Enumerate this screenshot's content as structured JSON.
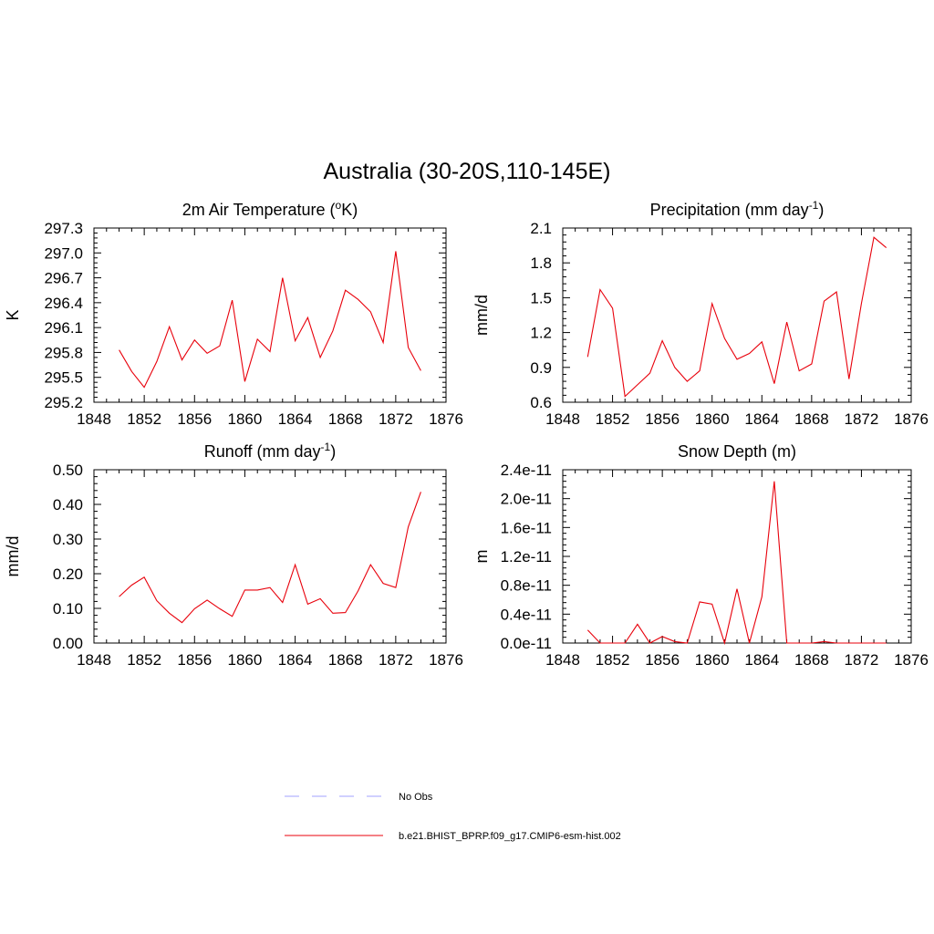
{
  "figure": {
    "title": "Australia (30-20S,110-145E)"
  },
  "chart_data": [
    {
      "type": "line",
      "title": "2m Air Temperature (",
      "title_sup": "o",
      "title_suffix": "K)",
      "xlabel": "",
      "ylabel": "K",
      "xlim": [
        1848,
        1876
      ],
      "ylim": [
        295.2,
        297.3
      ],
      "xticks": [
        1848,
        1852,
        1856,
        1860,
        1864,
        1868,
        1872,
        1876
      ],
      "yticks": [
        295.2,
        295.5,
        295.8,
        296.1,
        296.4,
        296.7,
        297.0,
        297.3
      ],
      "ytick_labels": [
        "295.2",
        "295.5",
        "295.8",
        "296.1",
        "296.4",
        "296.7",
        "297.0",
        "297.3"
      ],
      "x": [
        1850,
        1851,
        1852,
        1853,
        1854,
        1855,
        1856,
        1857,
        1858,
        1859,
        1860,
        1861,
        1862,
        1863,
        1864,
        1865,
        1866,
        1867,
        1868,
        1869,
        1870,
        1871,
        1872,
        1873,
        1874
      ],
      "series": [
        {
          "color": "#e8000b",
          "values": [
            295.83,
            295.57,
            295.38,
            295.69,
            296.11,
            295.71,
            295.95,
            295.79,
            295.88,
            296.43,
            295.45,
            295.96,
            295.81,
            296.7,
            295.94,
            296.22,
            295.74,
            296.06,
            296.55,
            296.44,
            296.29,
            295.92,
            297.02,
            295.86,
            295.58
          ]
        }
      ]
    },
    {
      "type": "line",
      "title": "Precipitation (mm day",
      "title_sup": "-1",
      "title_suffix": ")",
      "xlabel": "",
      "ylabel": "mm/d",
      "xlim": [
        1848,
        1876
      ],
      "ylim": [
        0.6,
        2.1
      ],
      "xticks": [
        1848,
        1852,
        1856,
        1860,
        1864,
        1868,
        1872,
        1876
      ],
      "yticks": [
        0.6,
        0.9,
        1.2,
        1.5,
        1.8,
        2.1
      ],
      "ytick_labels": [
        "0.6",
        "0.9",
        "1.2",
        "1.5",
        "1.8",
        "2.1"
      ],
      "x": [
        1850,
        1851,
        1852,
        1853,
        1854,
        1855,
        1856,
        1857,
        1858,
        1859,
        1860,
        1861,
        1862,
        1863,
        1864,
        1865,
        1866,
        1867,
        1868,
        1869,
        1870,
        1871,
        1872,
        1873,
        1874
      ],
      "series": [
        {
          "color": "#e8000b",
          "values": [
            0.99,
            1.57,
            1.41,
            0.65,
            0.75,
            0.85,
            1.13,
            0.9,
            0.78,
            0.87,
            1.45,
            1.15,
            0.97,
            1.02,
            1.12,
            0.76,
            1.29,
            0.87,
            0.93,
            1.47,
            1.55,
            0.8,
            1.45,
            2.02,
            1.93
          ]
        }
      ]
    },
    {
      "type": "line",
      "title": "Runoff (mm day",
      "title_sup": "-1",
      "title_suffix": ")",
      "xlabel": "",
      "ylabel": "mm/d",
      "xlim": [
        1848,
        1876
      ],
      "ylim": [
        0.0,
        0.5
      ],
      "xticks": [
        1848,
        1852,
        1856,
        1860,
        1864,
        1868,
        1872,
        1876
      ],
      "yticks": [
        0.0,
        0.1,
        0.2,
        0.3,
        0.4,
        0.5
      ],
      "ytick_labels": [
        "0.00",
        "0.10",
        "0.20",
        "0.30",
        "0.40",
        "0.50"
      ],
      "x": [
        1850,
        1851,
        1852,
        1853,
        1854,
        1855,
        1856,
        1857,
        1858,
        1859,
        1860,
        1861,
        1862,
        1863,
        1864,
        1865,
        1866,
        1867,
        1868,
        1869,
        1870,
        1871,
        1872,
        1873,
        1874
      ],
      "series": [
        {
          "color": "#e8000b",
          "values": [
            0.134,
            0.167,
            0.19,
            0.122,
            0.086,
            0.059,
            0.099,
            0.124,
            0.099,
            0.077,
            0.153,
            0.153,
            0.16,
            0.117,
            0.226,
            0.112,
            0.128,
            0.086,
            0.088,
            0.15,
            0.226,
            0.172,
            0.16,
            0.335,
            0.436
          ]
        }
      ]
    },
    {
      "type": "line",
      "title": "Snow Depth (m)",
      "title_sup": "",
      "title_suffix": "",
      "xlabel": "",
      "ylabel": "m",
      "xlim": [
        1848,
        1876
      ],
      "ylim": [
        0.0,
        2.4e-11
      ],
      "xticks": [
        1848,
        1852,
        1856,
        1860,
        1864,
        1868,
        1872,
        1876
      ],
      "yticks": [
        0.0,
        4e-12,
        8e-12,
        1.2e-11,
        1.6e-11,
        2e-11,
        2.4e-11
      ],
      "ytick_labels": [
        "0.0e-11",
        "0.4e-11",
        "0.8e-11",
        "1.2e-11",
        "1.6e-11",
        "2.0e-11",
        "2.4e-11"
      ],
      "x": [
        1850,
        1851,
        1852,
        1853,
        1854,
        1855,
        1856,
        1857,
        1858,
        1859,
        1860,
        1861,
        1862,
        1863,
        1864,
        1865,
        1866,
        1867,
        1868,
        1869,
        1870,
        1871,
        1872,
        1873,
        1874
      ],
      "series": [
        {
          "color": "#e8000b",
          "values": [
            1.8e-12,
            0,
            0,
            0,
            2.6e-12,
            0,
            9e-13,
            2e-13,
            0,
            5.7e-12,
            5.4e-12,
            0,
            7.5e-12,
            0,
            6.4e-12,
            2.24e-11,
            0,
            0,
            0,
            2e-13,
            0,
            0,
            0,
            0,
            0
          ]
        }
      ]
    }
  ],
  "legend": {
    "placement": "bottom-center",
    "items": [
      {
        "label": "No Obs",
        "color": "#a0a0ff",
        "style": "dashed"
      },
      {
        "label": "b.e21.BHIST_BPRP.f09_g17.CMIP6-esm-hist.002",
        "color": "#e8000b",
        "style": "solid"
      }
    ]
  }
}
